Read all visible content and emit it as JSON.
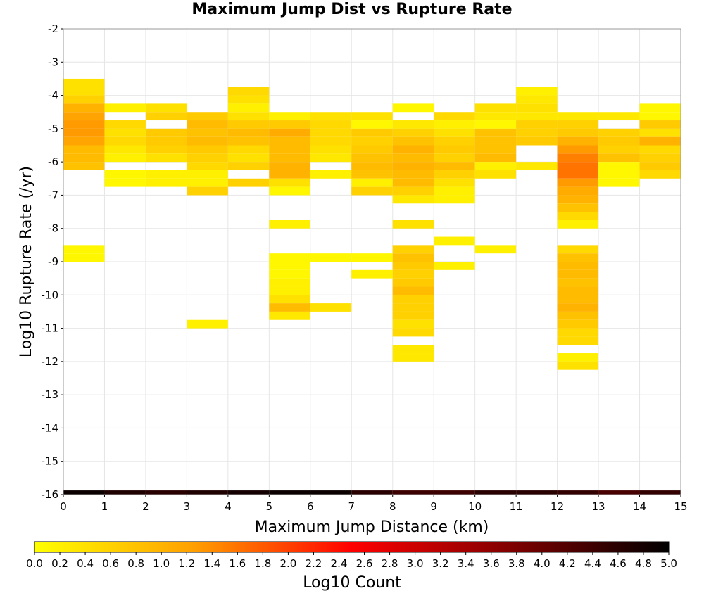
{
  "chart_data": {
    "type": "heatmap",
    "title": "Maximum Jump Dist vs Rupture Rate",
    "xlabel": "Maximum Jump Distance (km)",
    "ylabel": "Log10 Rupture Rate (/yr)",
    "xlim": [
      0,
      15
    ],
    "ylim": [
      -16,
      -2
    ],
    "x_ticks": [
      "0",
      "1",
      "2",
      "3",
      "4",
      "5",
      "6",
      "7",
      "8",
      "9",
      "10",
      "11",
      "12",
      "13",
      "14",
      "15"
    ],
    "y_ticks": [
      "-2",
      "-3",
      "-4",
      "-5",
      "-6",
      "-7",
      "-8",
      "-9",
      "-10",
      "-11",
      "-12",
      "-13",
      "-14",
      "-15",
      "-16"
    ],
    "cell_width_km": 1,
    "cell_height_log10": 0.25,
    "grid": true,
    "colorbar": {
      "label": "Log10 Count",
      "min": 0,
      "max": 5,
      "ticks": [
        "0.0",
        "0.2",
        "0.4",
        "0.6",
        "0.8",
        "1.0",
        "1.2",
        "1.4",
        "1.6",
        "1.8",
        "2.0",
        "2.2",
        "2.4",
        "2.6",
        "2.8",
        "3.0",
        "3.2",
        "3.4",
        "3.6",
        "3.8",
        "4.0",
        "4.2",
        "4.4",
        "4.6",
        "4.8",
        "5.0"
      ],
      "colors": [
        "#ffff00",
        "#ffa000",
        "#ff0000",
        "#800000",
        "#000000"
      ]
    },
    "columns": [
      {
        "x": 0.5,
        "cells": [
          [
            -3.625,
            0.4
          ],
          [
            -3.875,
            0.4
          ],
          [
            -4.125,
            0.6
          ],
          [
            -4.375,
            1.0
          ],
          [
            -4.625,
            1.2
          ],
          [
            -4.875,
            1.3
          ],
          [
            -5.125,
            1.3
          ],
          [
            -5.375,
            1.2
          ],
          [
            -5.625,
            0.9
          ],
          [
            -5.875,
            0.9
          ],
          [
            -6.125,
            0.8
          ],
          [
            -8.625,
            0.1
          ],
          [
            -8.875,
            0.1
          ]
        ]
      },
      {
        "x": 1.5,
        "cells": [
          [
            -4.375,
            0.2
          ],
          [
            -4.875,
            0.5
          ],
          [
            -5.125,
            0.4
          ],
          [
            -5.375,
            0.5
          ],
          [
            -5.625,
            0.3
          ],
          [
            -5.875,
            0.2
          ],
          [
            -6.375,
            0.1
          ],
          [
            -6.625,
            0.1
          ]
        ]
      },
      {
        "x": 2.5,
        "cells": [
          [
            -4.375,
            0.4
          ],
          [
            -4.625,
            0.6
          ],
          [
            -5.125,
            0.7
          ],
          [
            -5.375,
            0.7
          ],
          [
            -5.625,
            0.6
          ],
          [
            -5.875,
            0.4
          ],
          [
            -6.375,
            0.2
          ],
          [
            -6.625,
            0.2
          ]
        ]
      },
      {
        "x": 3.5,
        "cells": [
          [
            -4.625,
            0.7
          ],
          [
            -4.875,
            0.9
          ],
          [
            -5.125,
            0.8
          ],
          [
            -5.375,
            0.9
          ],
          [
            -5.625,
            0.7
          ],
          [
            -5.875,
            0.6
          ],
          [
            -6.125,
            0.5
          ],
          [
            -6.375,
            0.2
          ],
          [
            -6.625,
            0.2
          ],
          [
            -6.875,
            0.6
          ],
          [
            -10.875,
            0.2
          ]
        ]
      },
      {
        "x": 4.5,
        "cells": [
          [
            -3.875,
            0.5
          ],
          [
            -4.125,
            0.4
          ],
          [
            -4.375,
            0.2
          ],
          [
            -4.625,
            0.4
          ],
          [
            -4.875,
            0.7
          ],
          [
            -5.125,
            0.9
          ],
          [
            -5.375,
            0.8
          ],
          [
            -5.625,
            0.5
          ],
          [
            -5.875,
            0.4
          ],
          [
            -6.125,
            0.6
          ],
          [
            -6.625,
            0.6
          ]
        ]
      },
      {
        "x": 5.5,
        "cells": [
          [
            -4.625,
            0.2
          ],
          [
            -4.875,
            0.7
          ],
          [
            -5.125,
            1.1
          ],
          [
            -5.375,
            0.9
          ],
          [
            -5.625,
            0.9
          ],
          [
            -5.875,
            0.9
          ],
          [
            -6.125,
            1.0
          ],
          [
            -6.375,
            1.0
          ],
          [
            -6.625,
            0.4
          ],
          [
            -6.875,
            0.1
          ],
          [
            -7.875,
            0.2
          ],
          [
            -8.875,
            0.1
          ],
          [
            -9.125,
            0.1
          ],
          [
            -9.375,
            0.1
          ],
          [
            -9.625,
            0.2
          ],
          [
            -9.875,
            0.2
          ],
          [
            -10.125,
            0.4
          ],
          [
            -10.375,
            0.9
          ],
          [
            -10.625,
            0.3
          ]
        ]
      },
      {
        "x": 6.5,
        "cells": [
          [
            -4.625,
            0.4
          ],
          [
            -4.875,
            0.5
          ],
          [
            -5.125,
            0.5
          ],
          [
            -5.375,
            0.5
          ],
          [
            -5.625,
            0.4
          ],
          [
            -5.875,
            0.3
          ],
          [
            -6.375,
            0.2
          ],
          [
            -8.875,
            0.1
          ],
          [
            -10.375,
            0.4
          ]
        ]
      },
      {
        "x": 7.5,
        "cells": [
          [
            -4.625,
            0.4
          ],
          [
            -4.875,
            0.1
          ],
          [
            -5.125,
            0.7
          ],
          [
            -5.375,
            0.6
          ],
          [
            -5.625,
            0.7
          ],
          [
            -5.875,
            0.8
          ],
          [
            -6.125,
            0.9
          ],
          [
            -6.375,
            0.8
          ],
          [
            -6.625,
            0.2
          ],
          [
            -6.875,
            0.6
          ],
          [
            -8.875,
            0.1
          ],
          [
            -9.375,
            0.2
          ]
        ]
      },
      {
        "x": 8.5,
        "cells": [
          [
            -4.375,
            0.1
          ],
          [
            -4.875,
            0.3
          ],
          [
            -5.125,
            0.6
          ],
          [
            -5.375,
            0.8
          ],
          [
            -5.625,
            1.0
          ],
          [
            -5.875,
            0.9
          ],
          [
            -6.125,
            1.0
          ],
          [
            -6.375,
            0.9
          ],
          [
            -6.625,
            0.9
          ],
          [
            -6.875,
            0.6
          ],
          [
            -7.125,
            0.3
          ],
          [
            -7.875,
            0.4
          ],
          [
            -8.625,
            0.6
          ],
          [
            -8.875,
            0.8
          ],
          [
            -9.125,
            0.7
          ],
          [
            -9.375,
            0.6
          ],
          [
            -9.625,
            0.7
          ],
          [
            -9.875,
            0.9
          ],
          [
            -10.125,
            0.6
          ],
          [
            -10.375,
            0.6
          ],
          [
            -10.625,
            0.6
          ],
          [
            -10.875,
            0.4
          ],
          [
            -11.125,
            0.5
          ],
          [
            -11.625,
            0.3
          ],
          [
            -11.875,
            0.3
          ]
        ]
      },
      {
        "x": 9.5,
        "cells": [
          [
            -4.625,
            0.5
          ],
          [
            -4.875,
            0.2
          ],
          [
            -5.125,
            0.4
          ],
          [
            -5.375,
            0.6
          ],
          [
            -5.625,
            0.7
          ],
          [
            -5.875,
            0.6
          ],
          [
            -6.125,
            0.9
          ],
          [
            -6.375,
            0.6
          ],
          [
            -6.625,
            0.4
          ],
          [
            -6.875,
            0.2
          ],
          [
            -7.125,
            0.2
          ],
          [
            -8.375,
            0.2
          ],
          [
            -9.125,
            0.2
          ]
        ]
      },
      {
        "x": 10.5,
        "cells": [
          [
            -4.375,
            0.4
          ],
          [
            -4.625,
            0.3
          ],
          [
            -4.875,
            0.1
          ],
          [
            -5.125,
            0.8
          ],
          [
            -5.375,
            0.8
          ],
          [
            -5.625,
            0.8
          ],
          [
            -5.875,
            0.9
          ],
          [
            -6.125,
            0.2
          ],
          [
            -6.375,
            0.4
          ],
          [
            -8.625,
            0.2
          ]
        ]
      },
      {
        "x": 11.5,
        "cells": [
          [
            -3.875,
            0.2
          ],
          [
            -4.125,
            0.3
          ],
          [
            -4.375,
            0.4
          ],
          [
            -4.625,
            0.3
          ],
          [
            -4.875,
            0.6
          ],
          [
            -5.125,
            0.6
          ],
          [
            -5.375,
            0.7
          ],
          [
            -6.125,
            0.3
          ]
        ]
      },
      {
        "x": 12.5,
        "cells": [
          [
            -4.625,
            0.3
          ],
          [
            -4.875,
            0.6
          ],
          [
            -5.125,
            0.7
          ],
          [
            -5.375,
            1.0
          ],
          [
            -5.625,
            1.3
          ],
          [
            -5.875,
            1.5
          ],
          [
            -6.125,
            1.6
          ],
          [
            -6.375,
            1.6
          ],
          [
            -6.625,
            1.3
          ],
          [
            -6.875,
            1.1
          ],
          [
            -7.125,
            1.0
          ],
          [
            -7.375,
            0.8
          ],
          [
            -7.625,
            0.5
          ],
          [
            -7.875,
            0.2
          ],
          [
            -8.625,
            0.5
          ],
          [
            -8.875,
            0.8
          ],
          [
            -9.125,
            0.9
          ],
          [
            -9.375,
            0.9
          ],
          [
            -9.625,
            0.8
          ],
          [
            -9.875,
            0.9
          ],
          [
            -10.125,
            0.9
          ],
          [
            -10.375,
            1.0
          ],
          [
            -10.625,
            0.8
          ],
          [
            -10.875,
            0.7
          ],
          [
            -11.125,
            0.5
          ],
          [
            -11.375,
            0.5
          ],
          [
            -11.875,
            0.2
          ],
          [
            -12.125,
            0.4
          ]
        ]
      },
      {
        "x": 13.5,
        "cells": [
          [
            -4.625,
            0.3
          ],
          [
            -5.125,
            0.6
          ],
          [
            -5.375,
            0.7
          ],
          [
            -5.625,
            0.6
          ],
          [
            -5.875,
            0.8
          ],
          [
            -6.125,
            0.1
          ],
          [
            -6.375,
            0.1
          ],
          [
            -6.625,
            0.1
          ]
        ]
      },
      {
        "x": 14.5,
        "cells": [
          [
            -4.375,
            0.1
          ],
          [
            -4.625,
            0.1
          ],
          [
            -4.875,
            0.7
          ],
          [
            -5.125,
            0.4
          ],
          [
            -5.375,
            1.0
          ],
          [
            -5.625,
            0.5
          ],
          [
            -5.875,
            0.6
          ],
          [
            -6.125,
            0.7
          ],
          [
            -6.375,
            0.5
          ]
        ]
      }
    ],
    "bottom_row": {
      "y": -16,
      "x_start": 0,
      "x_end": 15,
      "values": [
        4.9,
        4.7,
        4.6,
        4.7,
        4.8,
        4.9,
        4.9,
        4.6,
        4.4,
        4.4,
        4.6,
        4.6,
        4.5,
        4.3,
        4.5
      ]
    }
  }
}
